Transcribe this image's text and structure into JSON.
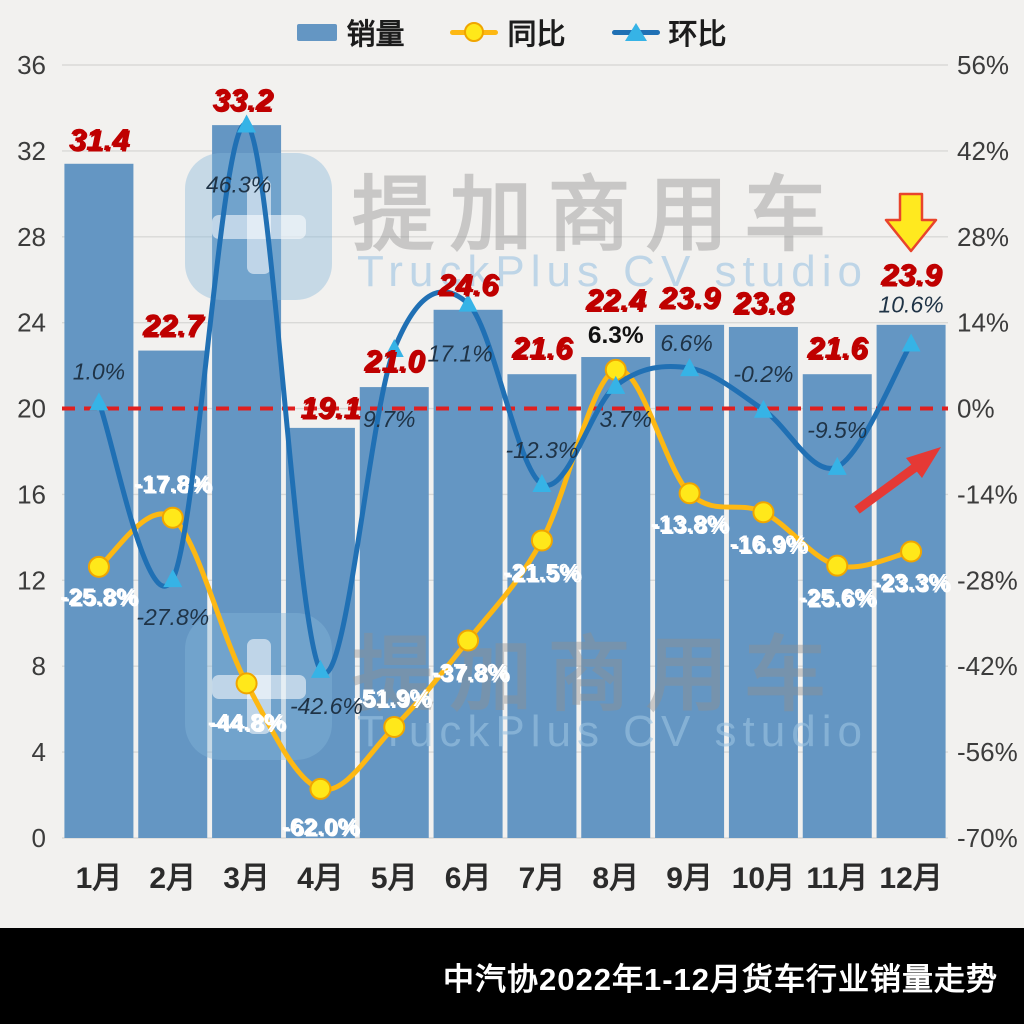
{
  "legend": {
    "items": [
      {
        "label": "销量",
        "type": "bar-swatch",
        "color": "#6496c3"
      },
      {
        "label": "同比",
        "type": "line-circle",
        "line_color": "#fdb813",
        "marker_color": "#ffe81a",
        "marker_edge": "#f0a500"
      },
      {
        "label": "环比",
        "type": "line-triangle",
        "line_color": "#2070b4",
        "marker_color": "#36b3e6"
      }
    ]
  },
  "watermark": {
    "brand": "提加商用车",
    "subtitle": "TruckPlus CV studio"
  },
  "footer": {
    "title": "中汽协2022年1-12月货车行业销量走势"
  },
  "chart_data": {
    "type": "combo",
    "title": "中汽协2022年1-12月货车行业销量走势",
    "categories": [
      "1月",
      "2月",
      "3月",
      "4月",
      "5月",
      "6月",
      "7月",
      "8月",
      "9月",
      "10月",
      "11月",
      "12月"
    ],
    "left_axis": {
      "min": 0,
      "max": 36,
      "step": 4,
      "ticks": [
        "36",
        "32",
        "28",
        "24",
        "20",
        "16",
        "12",
        "8",
        "4",
        "0"
      ]
    },
    "right_axis": {
      "min": -70,
      "max": 56,
      "step": 14,
      "ticks": [
        "56%",
        "42%",
        "28%",
        "14%",
        "0%",
        "-14%",
        "-28%",
        "-42%",
        "-56%",
        "-70%"
      ]
    },
    "zero_reference_line": {
      "right_axis_value": 0,
      "color": "#e01f1f",
      "style": "dashed"
    },
    "grid": "horizontal",
    "legend_position": "top-center",
    "series": [
      {
        "name": "销量",
        "type": "bar",
        "axis": "left",
        "color": "#6496c3",
        "values": [
          31.4,
          22.7,
          33.2,
          19.1,
          21.0,
          24.6,
          21.6,
          22.4,
          23.9,
          23.8,
          21.6,
          23.9
        ],
        "labels": [
          "31.4",
          "22.7",
          "33.2",
          "19.1",
          "21.0",
          "24.6",
          "21.6",
          "22.4",
          "23.9",
          "23.8",
          "21.6",
          "23.9"
        ],
        "label_color": "#bf0000",
        "label_offsets": [
          [
            0,
            -14
          ],
          [
            0,
            -15
          ],
          [
            -4,
            -15
          ],
          [
            10,
            -10
          ],
          [
            0,
            -16
          ],
          [
            0,
            -15
          ],
          [
            0,
            -16
          ],
          [
            0,
            -47
          ],
          [
            0,
            -17
          ],
          [
            0,
            -14
          ],
          [
            0,
            -16
          ],
          [
            0,
            -40
          ]
        ]
      },
      {
        "name": "同比",
        "type": "line",
        "axis": "right",
        "color": "#fdb813",
        "marker": "circle",
        "marker_color": "#ffe81a",
        "values": [
          -25.8,
          -17.8,
          -44.8,
          -62.0,
          -51.9,
          -37.8,
          -21.5,
          6.3,
          -13.8,
          -16.9,
          -25.6,
          -23.3
        ],
        "labels": [
          "-25.8%",
          "-17.8%",
          "-44.8%",
          "-62.0%",
          "-51.9%",
          "-37.8%",
          "-21.5%",
          "6.3%",
          "-13.8%",
          "-16.9%",
          "-25.6%",
          "-23.3%"
        ],
        "label_colors": [
          "#ffffff",
          "#ffffff",
          "#ffffff",
          "#ffffff",
          "#ffffff",
          "#ffffff",
          "#ffffff",
          "#111111",
          "#ffffff",
          "#ffffff",
          "#ffffff",
          "#ffffff"
        ],
        "label_offsets": [
          [
            0,
            38
          ],
          [
            0,
            -26
          ],
          [
            0,
            47
          ],
          [
            0,
            46
          ],
          [
            -2,
            -21
          ],
          [
            2,
            40
          ],
          [
            0,
            40
          ],
          [
            0,
            -27
          ],
          [
            0,
            39
          ],
          [
            5,
            40
          ],
          [
            0,
            40
          ],
          [
            0,
            39
          ]
        ]
      },
      {
        "name": "环比",
        "type": "line",
        "axis": "right",
        "color": "#2070b4",
        "marker": "triangle",
        "marker_color": "#36b3e6",
        "values": [
          1.0,
          -27.8,
          46.3,
          -42.6,
          9.7,
          17.1,
          -12.3,
          3.7,
          6.6,
          -0.2,
          -9.5,
          10.6
        ],
        "labels": [
          "1.0%",
          "-27.8%",
          "46.3%",
          "-42.6%",
          "9.7%",
          "17.1%",
          "-12.3%",
          "3.7%",
          "6.6%",
          "-0.2%",
          "-9.5%",
          "10.6%"
        ],
        "label_color": "#1f3346",
        "label_offsets": [
          [
            0,
            -23
          ],
          [
            0,
            46
          ],
          [
            -8,
            68
          ],
          [
            6,
            44
          ],
          [
            -5,
            78
          ],
          [
            -8,
            58
          ],
          [
            0,
            -26
          ],
          [
            10,
            41
          ],
          [
            -3,
            -17
          ],
          [
            0,
            -28
          ],
          [
            0,
            -29
          ],
          [
            0,
            -31
          ]
        ]
      }
    ],
    "annotations": [
      {
        "type": "down-arrow",
        "target_month": "12月",
        "fill": "#ffe91f",
        "stroke": "#e8442c"
      },
      {
        "type": "up-trend-arrow",
        "color": "#e53935"
      }
    ]
  }
}
